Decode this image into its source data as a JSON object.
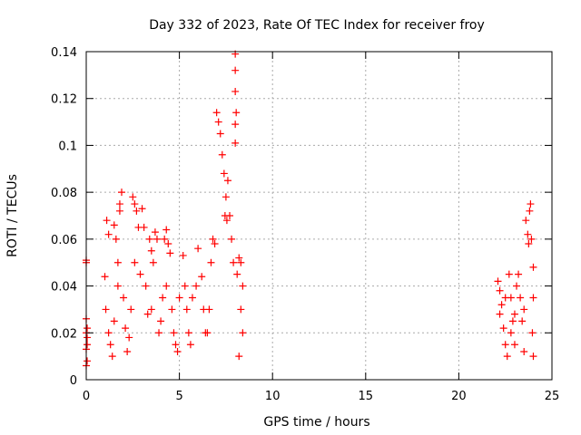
{
  "chart_data": {
    "type": "scatter",
    "title": "Day 332 of 2023, Rate Of TEC Index for receiver froy",
    "xlabel": "GPS time / hours",
    "ylabel": "ROTI / TECUs",
    "xlim": [
      0,
      25
    ],
    "ylim": [
      0,
      0.14
    ],
    "xticks": [
      0,
      5,
      10,
      15,
      20,
      25
    ],
    "xtick_labels": [
      "0",
      "5",
      "10",
      "15",
      "20",
      "25"
    ],
    "yticks": [
      0,
      0.02,
      0.04,
      0.06,
      0.08,
      0.1,
      0.12,
      0.14
    ],
    "ytick_labels": [
      "0",
      "0.02",
      "0.04",
      "0.06",
      "0.08",
      "0.1",
      "0.12",
      "0.14"
    ],
    "grid": true,
    "marker": "+",
    "colors": {
      "marker": "#ff0000",
      "grid": "#aaaaaa",
      "axis": "#000000"
    },
    "series": [
      {
        "values": [
          [
            0.0,
            0.051
          ],
          [
            0.0,
            0.05
          ],
          [
            0.0,
            0.026
          ],
          [
            0.05,
            0.022
          ],
          [
            0.05,
            0.018
          ],
          [
            0.0,
            0.013
          ],
          [
            0.05,
            0.008
          ],
          [
            0.0,
            0.006
          ],
          [
            0.05,
            0.015
          ],
          [
            0.0,
            0.02
          ],
          [
            1.0,
            0.044
          ],
          [
            1.1,
            0.068
          ],
          [
            1.2,
            0.062
          ],
          [
            1.05,
            0.03
          ],
          [
            1.2,
            0.02
          ],
          [
            1.3,
            0.015
          ],
          [
            1.4,
            0.01
          ],
          [
            1.5,
            0.025
          ],
          [
            1.6,
            0.06
          ],
          [
            1.7,
            0.05
          ],
          [
            1.5,
            0.066
          ],
          [
            1.8,
            0.075
          ],
          [
            1.9,
            0.08
          ],
          [
            1.8,
            0.072
          ],
          [
            1.7,
            0.04
          ],
          [
            2.0,
            0.035
          ],
          [
            2.1,
            0.022
          ],
          [
            2.2,
            0.012
          ],
          [
            2.3,
            0.018
          ],
          [
            2.4,
            0.03
          ],
          [
            2.5,
            0.078
          ],
          [
            2.6,
            0.075
          ],
          [
            2.7,
            0.072
          ],
          [
            2.8,
            0.065
          ],
          [
            2.6,
            0.05
          ],
          [
            2.9,
            0.045
          ],
          [
            3.0,
            0.073
          ],
          [
            3.1,
            0.065
          ],
          [
            3.2,
            0.04
          ],
          [
            3.3,
            0.028
          ],
          [
            3.4,
            0.06
          ],
          [
            3.5,
            0.055
          ],
          [
            3.6,
            0.05
          ],
          [
            3.7,
            0.063
          ],
          [
            3.8,
            0.06
          ],
          [
            3.5,
            0.03
          ],
          [
            3.9,
            0.02
          ],
          [
            4.0,
            0.025
          ],
          [
            4.1,
            0.035
          ],
          [
            4.2,
            0.06
          ],
          [
            4.3,
            0.064
          ],
          [
            4.4,
            0.058
          ],
          [
            4.5,
            0.054
          ],
          [
            4.3,
            0.04
          ],
          [
            4.6,
            0.03
          ],
          [
            4.7,
            0.02
          ],
          [
            4.8,
            0.015
          ],
          [
            4.9,
            0.012
          ],
          [
            5.0,
            0.035
          ],
          [
            5.2,
            0.053
          ],
          [
            5.3,
            0.04
          ],
          [
            5.4,
            0.03
          ],
          [
            5.5,
            0.02
          ],
          [
            5.6,
            0.015
          ],
          [
            5.7,
            0.035
          ],
          [
            5.9,
            0.04
          ],
          [
            6.0,
            0.056
          ],
          [
            6.2,
            0.044
          ],
          [
            6.3,
            0.03
          ],
          [
            6.4,
            0.02
          ],
          [
            6.5,
            0.02
          ],
          [
            6.6,
            0.03
          ],
          [
            6.7,
            0.05
          ],
          [
            6.8,
            0.06
          ],
          [
            6.9,
            0.058
          ],
          [
            7.0,
            0.114
          ],
          [
            7.1,
            0.11
          ],
          [
            7.2,
            0.105
          ],
          [
            7.3,
            0.096
          ],
          [
            7.4,
            0.088
          ],
          [
            7.5,
            0.078
          ],
          [
            7.45,
            0.07
          ],
          [
            7.55,
            0.068
          ],
          [
            7.6,
            0.085
          ],
          [
            7.7,
            0.07
          ],
          [
            7.8,
            0.06
          ],
          [
            7.9,
            0.05
          ],
          [
            8.0,
            0.139
          ],
          [
            8.0,
            0.132
          ],
          [
            8.0,
            0.123
          ],
          [
            8.05,
            0.114
          ],
          [
            8.0,
            0.109
          ],
          [
            8.0,
            0.101
          ],
          [
            8.1,
            0.045
          ],
          [
            8.2,
            0.052
          ],
          [
            8.3,
            0.05
          ],
          [
            8.4,
            0.04
          ],
          [
            8.3,
            0.03
          ],
          [
            8.4,
            0.02
          ],
          [
            8.2,
            0.01
          ],
          [
            22.1,
            0.042
          ],
          [
            22.2,
            0.038
          ],
          [
            22.3,
            0.032
          ],
          [
            22.4,
            0.022
          ],
          [
            22.5,
            0.015
          ],
          [
            22.6,
            0.01
          ],
          [
            22.7,
            0.045
          ],
          [
            22.8,
            0.035
          ],
          [
            22.9,
            0.025
          ],
          [
            23.0,
            0.015
          ],
          [
            23.1,
            0.04
          ],
          [
            23.2,
            0.045
          ],
          [
            23.3,
            0.035
          ],
          [
            23.4,
            0.025
          ],
          [
            23.5,
            0.012
          ],
          [
            23.6,
            0.068
          ],
          [
            23.7,
            0.062
          ],
          [
            23.75,
            0.058
          ],
          [
            23.8,
            0.072
          ],
          [
            23.85,
            0.075
          ],
          [
            23.9,
            0.06
          ],
          [
            24.0,
            0.048
          ],
          [
            24.0,
            0.035
          ],
          [
            23.95,
            0.02
          ],
          [
            24.0,
            0.01
          ],
          [
            23.5,
            0.03
          ],
          [
            23.0,
            0.028
          ],
          [
            22.5,
            0.035
          ],
          [
            22.2,
            0.028
          ],
          [
            22.8,
            0.02
          ]
        ]
      }
    ]
  }
}
